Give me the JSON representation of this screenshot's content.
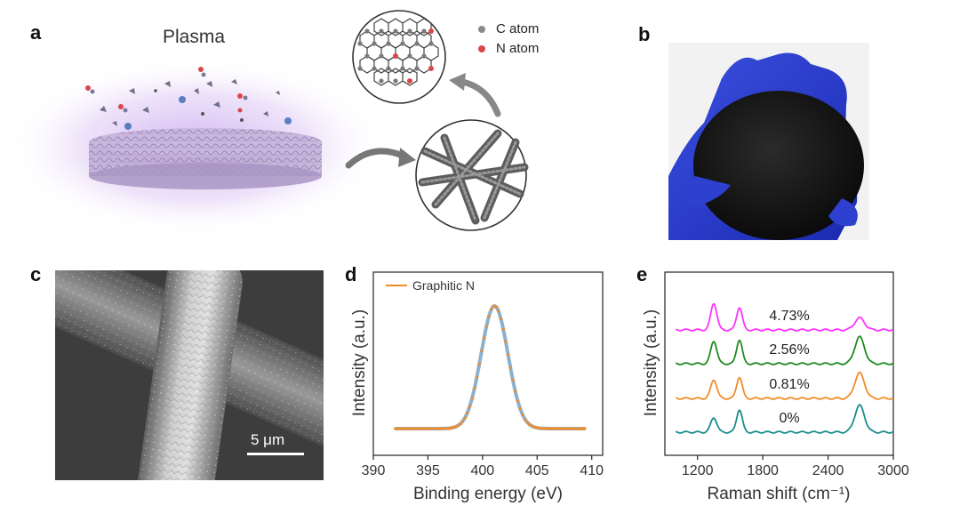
{
  "panels": {
    "a": {
      "label": "a",
      "title": "Plasma",
      "legend": [
        {
          "name": "C atom",
          "color": "#8a8a8a"
        },
        {
          "name": "N atom",
          "color": "#d9474a"
        }
      ]
    },
    "b": {
      "label": "b"
    },
    "c": {
      "label": "c",
      "scale_bar": "5 μm"
    },
    "d": {
      "label": "d"
    },
    "e": {
      "label": "e"
    }
  },
  "chart_data": [
    {
      "id": "d",
      "type": "line",
      "xlabel": "Binding energy (eV)",
      "ylabel": "Intensity (a.u.)",
      "xlim": [
        390,
        411
      ],
      "x_ticks": [
        390,
        395,
        400,
        405,
        410
      ],
      "legend": [
        "Graphitic N"
      ],
      "series": [
        {
          "name": "Graphitic N",
          "color": "#f28c28",
          "fit_color": "#7fa8c9",
          "peak_center": 401.1,
          "fwhm": 2.9,
          "peak_height": 1.0,
          "baseline": 0.0,
          "x_range": [
            392,
            409.5
          ]
        }
      ]
    },
    {
      "id": "e",
      "type": "line",
      "xlabel": "Raman shift (cm⁻¹)",
      "ylabel": "Intensity (a.u.)",
      "xlim": [
        900,
        3000
      ],
      "x_ticks": [
        1200,
        1800,
        2400,
        3000
      ],
      "series": [
        {
          "name": "4.73%",
          "color": "#ff33ff",
          "D": 1.0,
          "G": 0.85,
          "G2D": 0.45
        },
        {
          "name": "2.56%",
          "color": "#1f8a1f",
          "D": 0.85,
          "G": 0.9,
          "G2D": 1.0
        },
        {
          "name": "0.81%",
          "color": "#f28c28",
          "D": 0.7,
          "G": 0.8,
          "G2D": 0.95
        },
        {
          "name": "0%",
          "color": "#1a8c8c",
          "D": 0.55,
          "G": 0.85,
          "G2D": 1.0
        }
      ],
      "peak_positions": {
        "D": 1350,
        "G": 1585,
        "G2D": 2690
      }
    }
  ]
}
